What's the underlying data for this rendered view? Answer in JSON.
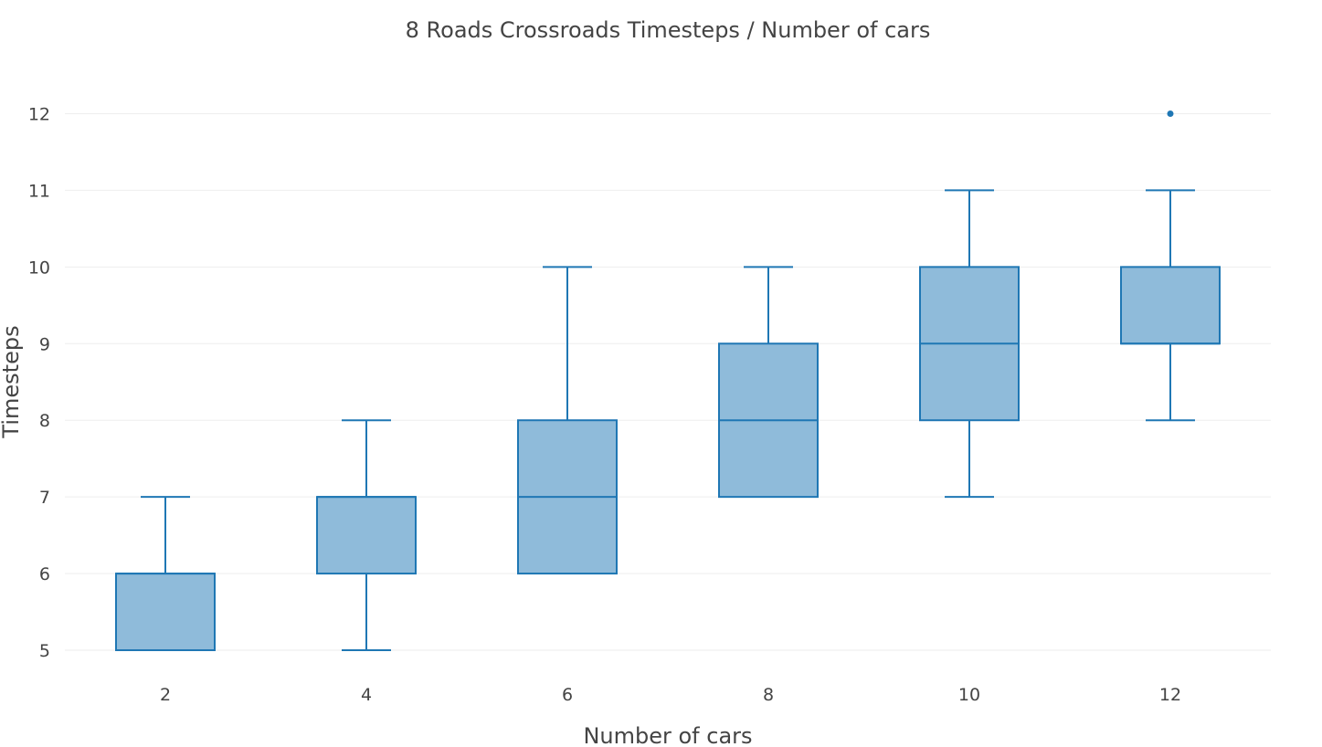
{
  "chart_data": {
    "type": "box",
    "title": "8 Roads Crossroads Timesteps / Number of cars",
    "xlabel": "Number of cars",
    "ylabel": "Timesteps",
    "categories": [
      "2",
      "4",
      "6",
      "8",
      "10",
      "12"
    ],
    "y_ticks": [
      "5",
      "6",
      "7",
      "8",
      "9",
      "10",
      "11",
      "12"
    ],
    "ylim": [
      4.8,
      12.6
    ],
    "grid": true,
    "colors": {
      "line": "#1f77b4",
      "fill": "#8fbbda",
      "grid": "#eeeeee",
      "text": "#444444"
    },
    "boxes": [
      {
        "x": "2",
        "min": 5,
        "q1": 5,
        "median": 6,
        "q3": 6,
        "max": 7,
        "outliers": []
      },
      {
        "x": "4",
        "min": 5,
        "q1": 6,
        "median": 7,
        "q3": 7,
        "max": 8,
        "outliers": []
      },
      {
        "x": "6",
        "min": 6,
        "q1": 6,
        "median": 7,
        "q3": 8,
        "max": 10,
        "outliers": []
      },
      {
        "x": "8",
        "min": 7,
        "q1": 7,
        "median": 8,
        "q3": 9,
        "max": 10,
        "outliers": []
      },
      {
        "x": "10",
        "min": 7,
        "q1": 8,
        "median": 9,
        "q3": 10,
        "max": 11,
        "outliers": []
      },
      {
        "x": "12",
        "min": 8,
        "q1": 9,
        "median": 9,
        "q3": 10,
        "max": 11,
        "outliers": [
          12
        ]
      }
    ]
  }
}
